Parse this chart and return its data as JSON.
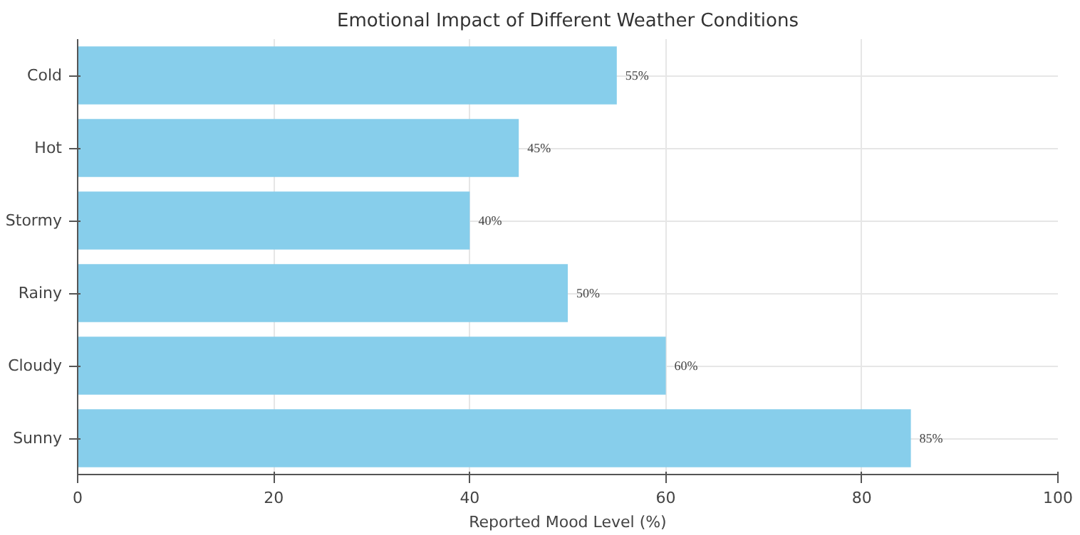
{
  "chart_data": {
    "type": "bar",
    "orientation": "horizontal",
    "title": "Emotional Impact of Different Weather Conditions",
    "xlabel": "Reported Mood Level (%)",
    "categories": [
      "Cold",
      "Hot",
      "Stormy",
      "Rainy",
      "Cloudy",
      "Sunny"
    ],
    "values": [
      55,
      45,
      40,
      50,
      60,
      85
    ],
    "value_labels": [
      "55%",
      "45%",
      "40%",
      "50%",
      "60%",
      "85%"
    ],
    "color": "#87ceeb",
    "xlim": [
      0,
      100
    ],
    "xticks": [
      0,
      20,
      40,
      60,
      80,
      100
    ],
    "grid": true
  }
}
